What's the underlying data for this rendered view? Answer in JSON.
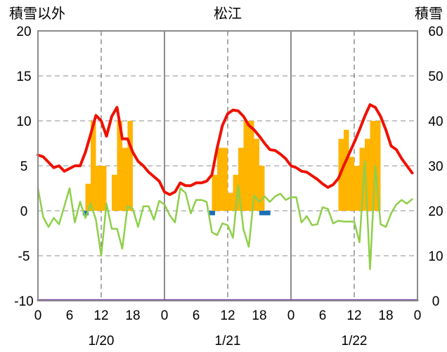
{
  "chart_data": {
    "type": "bar+line",
    "title": "松江",
    "left_axis": {
      "title": "積雪以外",
      "ylim": [
        -10,
        20
      ],
      "ticks": [
        -10,
        -5,
        0,
        5,
        10,
        15,
        20
      ]
    },
    "right_axis": {
      "title": "積雪",
      "ylim": [
        0,
        60
      ],
      "ticks": [
        0,
        10,
        20,
        30,
        40,
        50,
        60
      ]
    },
    "x_axis": {
      "range_hours": [
        0,
        72
      ],
      "tick_labels": [
        "0",
        "6",
        "12",
        "18",
        "0",
        "6",
        "12",
        "18",
        "0",
        "6",
        "12",
        "18",
        "0"
      ],
      "day_labels": [
        "1/20",
        "1/21",
        "1/22"
      ]
    },
    "grid": true,
    "series": [
      {
        "kind": "bar",
        "axis": "left",
        "color": "#ffb400",
        "hours": [
          8,
          9,
          10,
          11,
          12,
          13,
          14,
          15,
          16,
          17,
          18,
          19,
          32,
          33,
          34,
          35,
          36,
          37,
          38,
          39,
          40,
          41,
          42,
          43,
          56,
          57,
          58,
          59,
          60,
          61,
          62,
          63,
          64,
          65,
          66,
          67
        ],
        "values": [
          0,
          3,
          10,
          5,
          5,
          0,
          4,
          10,
          7,
          10,
          0,
          0,
          0,
          4,
          7,
          7,
          2,
          4,
          7,
          10,
          10,
          8,
          5,
          0,
          0,
          8,
          9,
          6,
          5,
          7,
          8,
          10,
          10,
          0,
          0,
          0
        ]
      },
      {
        "kind": "bar",
        "axis": "left",
        "color": "#1a70b8",
        "hours": [
          8.5,
          32.5,
          42,
          43
        ],
        "values": [
          -0.5,
          -0.5,
          -0.5,
          -0.5
        ]
      },
      {
        "kind": "line",
        "axis": "left",
        "color": "#ee1100",
        "hours": [
          0,
          1,
          2,
          3,
          4,
          5,
          6,
          7,
          8,
          9,
          10,
          11,
          12,
          13,
          14,
          15,
          16,
          17,
          18,
          19,
          20,
          21,
          22,
          23,
          24,
          25,
          26,
          27,
          28,
          29,
          30,
          31,
          32,
          33,
          34,
          35,
          36,
          37,
          38,
          39,
          40,
          41,
          42,
          43,
          44,
          45,
          46,
          47,
          48,
          49,
          50,
          51,
          52,
          53,
          54,
          55,
          56,
          57,
          58,
          59,
          60,
          61,
          62,
          63,
          64,
          65,
          66,
          67,
          68,
          69,
          70,
          71
        ],
        "values": [
          6.2,
          6,
          5.4,
          4.8,
          5,
          4.4,
          4.7,
          5,
          5,
          6.5,
          8.5,
          10.6,
          10,
          8.3,
          10.5,
          11.5,
          8,
          8,
          6.5,
          5.5,
          5,
          4.3,
          3.8,
          3.3,
          2.1,
          1.8,
          2.1,
          3.1,
          2.8,
          2.8,
          3.1,
          3.1,
          3.3,
          4,
          7,
          9.5,
          10.8,
          11.2,
          11.1,
          10.5,
          9.5,
          9,
          8.3,
          7.5,
          6.8,
          6.7,
          6.3,
          5.8,
          5,
          4.8,
          4.4,
          4.3,
          3.9,
          3.5,
          3,
          2.6,
          2.9,
          3.6,
          5,
          6.3,
          7.6,
          9,
          10.5,
          11.8,
          11.5,
          10.5,
          9,
          7.2,
          6.8,
          5.8,
          5,
          4.2
        ]
      },
      {
        "kind": "line",
        "axis": "left",
        "color": "#8fcf4a",
        "hours": [
          0,
          1,
          2,
          3,
          4,
          5,
          6,
          7,
          8,
          9,
          10,
          11,
          12,
          13,
          14,
          15,
          16,
          17,
          18,
          19,
          20,
          21,
          22,
          23,
          24,
          25,
          26,
          27,
          28,
          29,
          30,
          31,
          32,
          33,
          34,
          35,
          36,
          37,
          38,
          39,
          40,
          41,
          42,
          43,
          44,
          45,
          46,
          47,
          48,
          49,
          50,
          51,
          52,
          53,
          54,
          55,
          56,
          57,
          58,
          59,
          60,
          61,
          62,
          63,
          64,
          65,
          66,
          67,
          68,
          69,
          70,
          71
        ],
        "values": [
          2.5,
          -0.7,
          -1.8,
          -0.8,
          -1.5,
          0.5,
          2.5,
          -1.3,
          1,
          -0.8,
          0.8,
          -1,
          -5,
          0.8,
          -2,
          -2,
          -4.2,
          0.5,
          0.2,
          -1.8,
          0.5,
          0.5,
          -1,
          1.1,
          0.7,
          -0.5,
          -1.3,
          2.5,
          2,
          -0.3,
          1.2,
          1.2,
          1,
          -2.4,
          -2.7,
          -1.4,
          -1.6,
          -3,
          2.8,
          -2.1,
          -4,
          1.7,
          1,
          1.6,
          1,
          1.6,
          1.9,
          1.2,
          1.5,
          1.5,
          -1.3,
          -0.6,
          -1.6,
          -1.5,
          0.4,
          0.2,
          -1.4,
          -1.1,
          -1.2,
          -1.2,
          -1.2,
          -3.5,
          5.5,
          -6.5,
          5,
          -1.5,
          -1.8,
          -0.3,
          0.7,
          1.2,
          0.8,
          1.3
        ]
      },
      {
        "kind": "line",
        "axis": "left",
        "color": "#7f3fa7",
        "hours": [
          0,
          72
        ],
        "values": [
          -9.95,
          -9.95
        ]
      }
    ]
  }
}
